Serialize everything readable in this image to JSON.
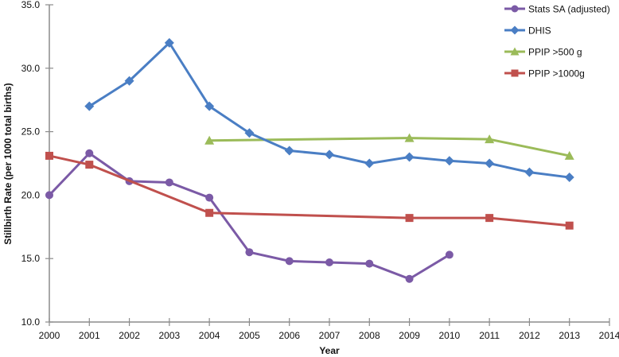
{
  "chart_data": {
    "type": "line",
    "title": "",
    "xlabel": "Year",
    "ylabel": "Stillbirth Rate (per 1000 total births)",
    "xlim": [
      2000,
      2014
    ],
    "ylim": [
      10.0,
      35.0
    ],
    "x_ticks": [
      "2000",
      "2001",
      "2002",
      "2003",
      "2004",
      "2005",
      "2006",
      "2007",
      "2008",
      "2009",
      "2010",
      "2011",
      "2012",
      "2013",
      "2014"
    ],
    "y_ticks": [
      "10.0",
      "15.0",
      "20.0",
      "25.0",
      "30.0",
      "35.0"
    ],
    "grid": false,
    "legend_position": "top-right",
    "series": [
      {
        "name": "Stats SA (adjusted)",
        "color": "#7b5aa6",
        "marker": "circle",
        "points": [
          [
            2000,
            20.0
          ],
          [
            2001,
            23.3
          ],
          [
            2002,
            21.1
          ],
          [
            2003,
            21.0
          ],
          [
            2004,
            19.8
          ],
          [
            2005,
            15.5
          ],
          [
            2006,
            14.8
          ],
          [
            2007,
            14.7
          ],
          [
            2008,
            14.6
          ],
          [
            2009,
            13.4
          ],
          [
            2010,
            15.3
          ]
        ]
      },
      {
        "name": "DHIS",
        "color": "#4a7ec4",
        "marker": "diamond",
        "points": [
          [
            2001,
            27.0
          ],
          [
            2002,
            29.0
          ],
          [
            2003,
            32.0
          ],
          [
            2004,
            27.0
          ],
          [
            2005,
            24.9
          ],
          [
            2006,
            23.5
          ],
          [
            2007,
            23.2
          ],
          [
            2008,
            22.5
          ],
          [
            2009,
            23.0
          ],
          [
            2010,
            22.7
          ],
          [
            2011,
            22.5
          ],
          [
            2012,
            21.8
          ],
          [
            2013,
            21.4
          ]
        ]
      },
      {
        "name": "PPIP >500 g",
        "color": "#9bbb59",
        "marker": "triangle",
        "points": [
          [
            2004,
            24.3
          ],
          [
            2009,
            24.5
          ],
          [
            2011,
            24.4
          ],
          [
            2013,
            23.1
          ]
        ]
      },
      {
        "name": "PPIP >1000g",
        "color": "#c0504d",
        "marker": "square",
        "points": [
          [
            2000,
            23.1
          ],
          [
            2001,
            22.4
          ],
          [
            2004,
            18.6
          ],
          [
            2009,
            18.2
          ],
          [
            2011,
            18.2
          ],
          [
            2013,
            17.6
          ]
        ]
      }
    ]
  }
}
